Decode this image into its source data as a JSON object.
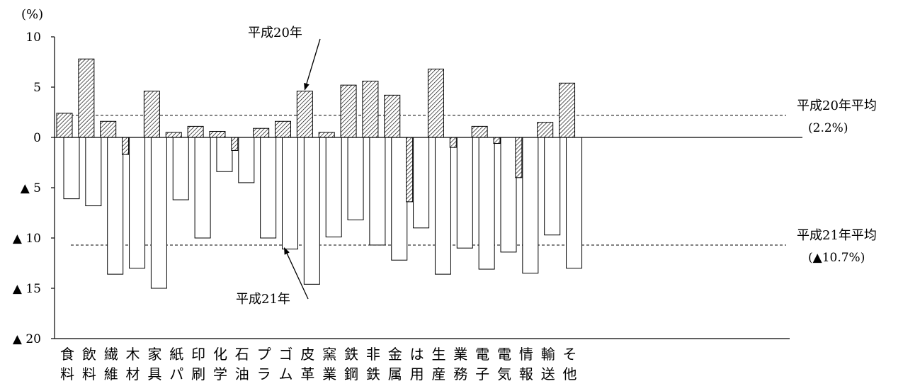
{
  "chart_data": {
    "type": "bar",
    "unit_label": "(%)",
    "categories": [
      [
        "食",
        "料"
      ],
      [
        "飲",
        "料"
      ],
      [
        "繊",
        "維"
      ],
      [
        "木",
        "材"
      ],
      [
        "家",
        "具"
      ],
      [
        "紙",
        "パ"
      ],
      [
        "印",
        "刷"
      ],
      [
        "化",
        "学"
      ],
      [
        "石",
        "油"
      ],
      [
        "プ",
        "ラ"
      ],
      [
        "ゴ",
        "ム"
      ],
      [
        "皮",
        "革"
      ],
      [
        "窯",
        "業"
      ],
      [
        "鉄",
        "鋼"
      ],
      [
        "非",
        "鉄"
      ],
      [
        "金",
        "属"
      ],
      [
        "は",
        "用"
      ],
      [
        "生",
        "産"
      ],
      [
        "業",
        "務"
      ],
      [
        "電",
        "子"
      ],
      [
        "電",
        "気"
      ],
      [
        "情",
        "報"
      ],
      [
        "輸",
        "送"
      ],
      [
        "そ",
        "他"
      ]
    ],
    "series": [
      {
        "name": "平成20年",
        "pattern": "hatched",
        "values": [
          2.4,
          7.8,
          1.6,
          -1.7,
          4.6,
          0.5,
          1.1,
          0.6,
          -1.3,
          0.9,
          1.6,
          4.6,
          0.5,
          5.2,
          5.6,
          4.2,
          -6.4,
          6.8,
          -1.0,
          1.1,
          -0.6,
          -4.0,
          1.5,
          5.4
        ]
      },
      {
        "name": "平成21年",
        "pattern": "white",
        "values": [
          -6.1,
          -6.8,
          -13.6,
          -13.0,
          -15.0,
          -6.2,
          -10.0,
          -3.4,
          -4.5,
          -10.0,
          -11.1,
          -14.6,
          -9.9,
          -8.2,
          -10.7,
          -12.2,
          -9.0,
          -13.6,
          -11.0,
          -13.1,
          -11.4,
          -13.5,
          -9.7,
          -13.0
        ]
      }
    ],
    "ylim": [
      -20,
      10
    ],
    "yticks": [
      {
        "value": 10,
        "label": "10"
      },
      {
        "value": 5,
        "label": "5"
      },
      {
        "value": 0,
        "label": "0"
      },
      {
        "value": -5,
        "label": "▲ 5"
      },
      {
        "value": -10,
        "label": "▲ 10"
      },
      {
        "value": -15,
        "label": "▲ 15"
      },
      {
        "value": -20,
        "label": "▲ 20"
      }
    ],
    "averages": [
      {
        "value": 2.2,
        "label": "平成20年平均",
        "sublabel": "(2.2%)"
      },
      {
        "value": -10.7,
        "label": "平成21年平均",
        "sublabel": "(▲10.7%)"
      }
    ],
    "annotations": [
      {
        "text": "平成20年",
        "target_category": 11,
        "target_series": 0
      },
      {
        "text": "平成21年",
        "target_category": 10,
        "target_series": 1
      }
    ]
  }
}
